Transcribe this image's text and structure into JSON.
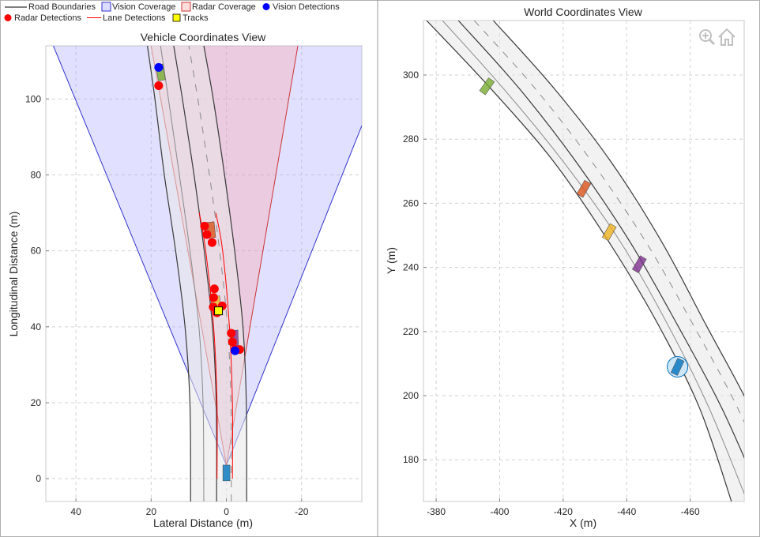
{
  "legend": {
    "items": [
      {
        "label": "Road Boundaries",
        "kind": "line",
        "color": "#000000"
      },
      {
        "label": "Vision Coverage",
        "kind": "patch",
        "color": "#aaaaff",
        "edge": "#3333cc"
      },
      {
        "label": "Radar Coverage",
        "kind": "patch",
        "color": "#ffaaaa",
        "edge": "#cc3333"
      },
      {
        "label": "Vision Detections",
        "kind": "dot",
        "color": "#0000ff"
      },
      {
        "label": "Radar Detections",
        "kind": "dot",
        "color": "#ff0000"
      },
      {
        "label": "Lane Detections",
        "kind": "line",
        "color": "#ff0000"
      },
      {
        "label": "Tracks",
        "kind": "square",
        "color": "#ffff00"
      }
    ]
  },
  "toolbar": {
    "zoom_icon": "zoom-in-icon",
    "home_icon": "home-icon"
  },
  "chart_data": [
    {
      "type": "scatter",
      "title": "Vehicle Coordinates View",
      "xlabel": "Lateral Distance (m)",
      "ylabel": "Longitudinal Distance (m)",
      "xlim": [
        48,
        -36
      ],
      "ylim": [
        -6,
        114
      ],
      "x_reversed": true,
      "grid": true,
      "xticks": [
        40,
        20,
        0,
        -20
      ],
      "xtick_labels": [
        "40",
        "20",
        "0",
        "-20"
      ],
      "yticks": [
        0,
        20,
        40,
        60,
        80,
        100
      ],
      "ytick_labels": [
        "0",
        "20",
        "40",
        "60",
        "80",
        "100"
      ],
      "vision_coverage": {
        "origin": [
          0,
          3.5
        ],
        "left_edge_end": [
          46,
          114
        ],
        "right_edge_end": [
          -36,
          93
        ],
        "color": "#aaaaff",
        "edge": "#3333cc"
      },
      "radar_coverage": {
        "origin": [
          0,
          3.5
        ],
        "left_edge_end": [
          20,
          114
        ],
        "right_edge_end": [
          -19,
          114
        ],
        "color": "#ffaaaa",
        "edge": "#cc3333"
      },
      "road_boundaries": [
        [
          [
            9.5,
            -6
          ],
          [
            9.7,
            20
          ],
          [
            11,
            40
          ],
          [
            13.5,
            60
          ],
          [
            16.5,
            80
          ],
          [
            19,
            100
          ],
          [
            21,
            114
          ]
        ],
        [
          [
            2.6,
            -6
          ],
          [
            2.7,
            20
          ],
          [
            3.7,
            40
          ],
          [
            5.9,
            60
          ],
          [
            8.6,
            80
          ],
          [
            11.7,
            100
          ],
          [
            14,
            114
          ]
        ],
        [
          [
            -5.4,
            -6
          ],
          [
            -5.3,
            20
          ],
          [
            -4.4,
            40
          ],
          [
            -2.2,
            60
          ],
          [
            0.5,
            80
          ],
          [
            3.5,
            100
          ],
          [
            6,
            114
          ]
        ]
      ],
      "lane_markings": [
        [
          [
            6,
            -6
          ],
          [
            6.2,
            20
          ],
          [
            7.3,
            40
          ],
          [
            9.7,
            60
          ],
          [
            12.5,
            80
          ],
          [
            15.4,
            100
          ],
          [
            17.5,
            114
          ]
        ],
        [
          [
            -1.3,
            -6
          ],
          [
            -1.2,
            20
          ],
          [
            -0.3,
            40
          ],
          [
            1.8,
            60
          ],
          [
            4.5,
            80
          ],
          [
            7.6,
            100
          ],
          [
            10,
            114
          ]
        ]
      ],
      "lane_detections": [
        [
          [
            2.5,
            0
          ],
          [
            2.5,
            20
          ],
          [
            3.4,
            40
          ],
          [
            5.5,
            60
          ],
          [
            7.2,
            70
          ]
        ],
        [
          [
            -1.6,
            0
          ],
          [
            -1.6,
            20
          ],
          [
            -0.8,
            40
          ],
          [
            1.0,
            60
          ],
          [
            2.8,
            70
          ]
        ]
      ],
      "vehicles": [
        {
          "x": 0,
          "y": 1.5,
          "color": "#0072bd",
          "heading": 0
        },
        {
          "x": -2.2,
          "y": 37,
          "color": "#7e2f8e",
          "heading": -2
        },
        {
          "x": 2.6,
          "y": 46,
          "color": "#edb120",
          "heading": -4
        },
        {
          "x": 4,
          "y": 65.5,
          "color": "#d95319",
          "heading": -6
        },
        {
          "x": 17.5,
          "y": 107,
          "color": "#77ac30",
          "heading": -10
        }
      ],
      "radar_detections": [
        [
          5.8,
          66.5
        ],
        [
          5.2,
          64.3
        ],
        [
          3.8,
          62.2
        ],
        [
          3.2,
          50
        ],
        [
          3.4,
          47.7
        ],
        [
          3.5,
          45.2
        ],
        [
          1.1,
          45.5
        ],
        [
          2.5,
          43.7
        ],
        [
          -1.3,
          38.3
        ],
        [
          -1.6,
          36
        ],
        [
          -2.3,
          34
        ],
        [
          -3.5,
          34
        ],
        [
          18,
          103.5
        ]
      ],
      "vision_detections": [
        [
          18,
          108.3
        ],
        [
          -2.3,
          33.7
        ]
      ],
      "tracks": [
        [
          2.1,
          44.2
        ]
      ]
    },
    {
      "type": "scatter",
      "title": "World Coordinates View",
      "xlabel": "X (m)",
      "ylabel": "Y (m)",
      "xlim": [
        -376,
        -477
      ],
      "ylim": [
        167,
        317
      ],
      "x_reversed": true,
      "grid": true,
      "xticks": [
        -380,
        -400,
        -420,
        -440,
        -460
      ],
      "xtick_labels": [
        "-380",
        "-400",
        "-420",
        "-440",
        "-460"
      ],
      "yticks": [
        180,
        200,
        220,
        240,
        260,
        280,
        300
      ],
      "ytick_labels": [
        "180",
        "200",
        "220",
        "240",
        "260",
        "280",
        "300"
      ],
      "road_boundaries": [
        [
          [
            -377,
            317
          ],
          [
            -397,
            296
          ],
          [
            -417,
            273
          ],
          [
            -435,
            247
          ],
          [
            -450,
            222
          ],
          [
            -463,
            196
          ],
          [
            -473,
            167
          ]
        ],
        [
          [
            -387,
            317
          ],
          [
            -406,
            296
          ],
          [
            -424,
            273
          ],
          [
            -441,
            248
          ],
          [
            -456,
            222
          ],
          [
            -470,
            196
          ],
          [
            -483,
            167
          ]
        ],
        [
          [
            -398,
            317
          ],
          [
            -417,
            296
          ],
          [
            -435,
            273
          ],
          [
            -451,
            248
          ],
          [
            -465,
            222
          ],
          [
            -479,
            196
          ],
          [
            -492,
            167
          ]
        ]
      ],
      "lane_markings": [
        [
          [
            -382,
            317
          ],
          [
            -401,
            296
          ],
          [
            -420,
            273
          ],
          [
            -438,
            248
          ],
          [
            -453,
            222
          ],
          [
            -466,
            196
          ],
          [
            -478,
            167
          ]
        ],
        [
          [
            -392,
            317
          ],
          [
            -411,
            296
          ],
          [
            -429,
            273
          ],
          [
            -446,
            248
          ],
          [
            -461,
            222
          ],
          [
            -475,
            196
          ],
          [
            -488,
            167
          ]
        ]
      ],
      "vehicles": [
        {
          "x": -396,
          "y": 296.5,
          "color": "#77ac30",
          "heading": 35
        },
        {
          "x": -426.5,
          "y": 264.5,
          "color": "#d95319",
          "heading": 30
        },
        {
          "x": -434.5,
          "y": 251,
          "color": "#edb120",
          "heading": 30
        },
        {
          "x": -444,
          "y": 241,
          "color": "#7e2f8e",
          "heading": 30
        },
        {
          "x": -456,
          "y": 209,
          "color": "#0072bd",
          "heading": 25
        }
      ],
      "ego_highlight": {
        "x": -456,
        "y": 209,
        "color": "#0072bd"
      }
    }
  ]
}
